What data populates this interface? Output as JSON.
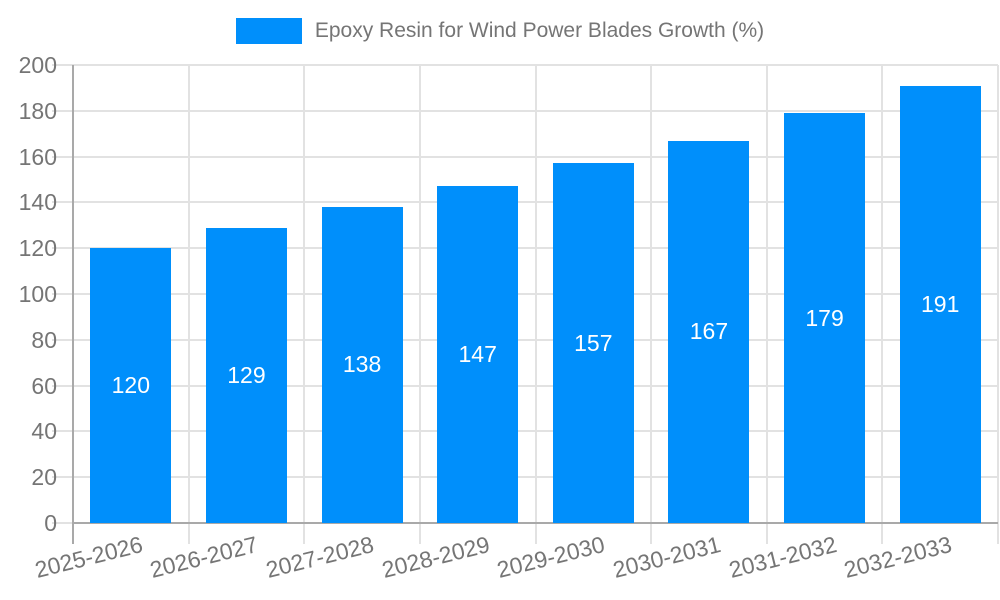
{
  "legend": {
    "label": "Epoxy Resin for Wind Power Blades Growth (%)"
  },
  "chart_data": {
    "type": "bar",
    "title": "Epoxy Resin for Wind Power Blades Growth (%)",
    "categories": [
      "2025-2026",
      "2026-2027",
      "2027-2028",
      "2028-2029",
      "2029-2030",
      "2030-2031",
      "2031-2032",
      "2032-2033"
    ],
    "values": [
      120,
      129,
      138,
      147,
      157,
      167,
      179,
      191
    ],
    "xlabel": "",
    "ylabel": "",
    "ylim": [
      0,
      200
    ],
    "ytick_step": 20,
    "ytick_labels": [
      "0",
      "20",
      "40",
      "60",
      "80",
      "100",
      "120",
      "140",
      "160",
      "180",
      "200"
    ],
    "grid": true,
    "legend_position": "top",
    "colors": {
      "bar": "#008FFB",
      "bar_value_label": "#ffffff",
      "axis_text": "#757575",
      "gridline": "#e2e2e2",
      "axis_line": "#a9a9a9"
    }
  }
}
